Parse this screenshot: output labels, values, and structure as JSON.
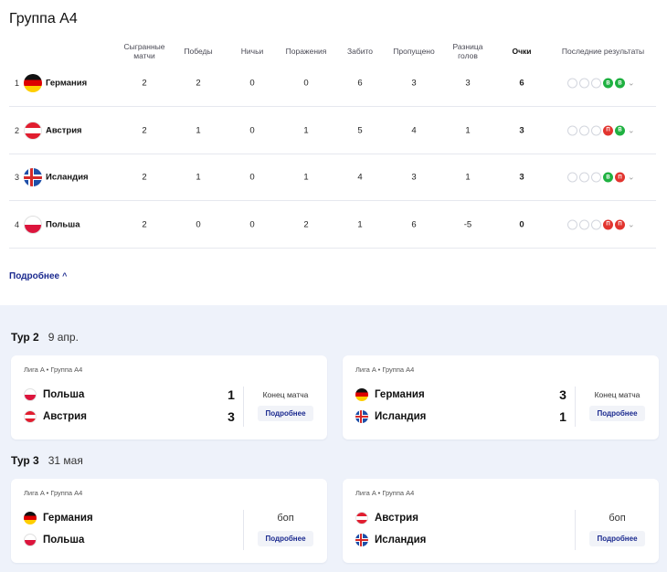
{
  "group": {
    "title": "Группа А4"
  },
  "table": {
    "headers": {
      "played": "Сыгранные матчи",
      "wins": "Победы",
      "draws": "Ничьи",
      "losses": "Поражения",
      "gf": "Забито",
      "ga": "Пропущено",
      "gd": "Разница голов",
      "points": "Очки",
      "form": "Последние результаты"
    },
    "rows": [
      {
        "pos": "1",
        "team": "Германия",
        "flag": "de",
        "played": "2",
        "wins": "2",
        "draws": "0",
        "losses": "0",
        "gf": "6",
        "ga": "3",
        "gd": "3",
        "points": "6",
        "form": [
          "",
          "",
          "",
          "В",
          "В"
        ]
      },
      {
        "pos": "2",
        "team": "Австрия",
        "flag": "at",
        "played": "2",
        "wins": "1",
        "draws": "0",
        "losses": "1",
        "gf": "5",
        "ga": "4",
        "gd": "1",
        "points": "3",
        "form": [
          "",
          "",
          "",
          "П",
          "В"
        ]
      },
      {
        "pos": "3",
        "team": "Исландия",
        "flag": "is",
        "played": "2",
        "wins": "1",
        "draws": "0",
        "losses": "1",
        "gf": "4",
        "ga": "3",
        "gd": "1",
        "points": "3",
        "form": [
          "",
          "",
          "",
          "В",
          "П"
        ]
      },
      {
        "pos": "4",
        "team": "Польша",
        "flag": "pl",
        "played": "2",
        "wins": "0",
        "draws": "0",
        "losses": "2",
        "gf": "1",
        "ga": "6",
        "gd": "-5",
        "points": "0",
        "form": [
          "",
          "",
          "",
          "П",
          "П"
        ]
      }
    ],
    "more_label": "Подробнее"
  },
  "colors": {
    "win": "#1fb141",
    "loss": "#e2352f",
    "link": "#1b2a8f",
    "panel": "#eef2fa"
  },
  "tours": [
    {
      "label": "Тур 2",
      "date": "9 апр.",
      "matches": [
        {
          "meta": "Лига A • Группа A4",
          "home": "Польша",
          "home_flag": "pl",
          "away": "Австрия",
          "away_flag": "at",
          "home_score": "1",
          "away_score": "3",
          "status": "Конец матча",
          "detail": "Подробнее"
        },
        {
          "meta": "Лига A • Группа A4",
          "home": "Германия",
          "home_flag": "de",
          "away": "Исландия",
          "away_flag": "is",
          "home_score": "3",
          "away_score": "1",
          "status": "Конец матча",
          "detail": "Подробнее"
        }
      ]
    },
    {
      "label": "Тур 3",
      "date": "31 мая",
      "matches": [
        {
          "meta": "Лига A • Группа A4",
          "home": "Германия",
          "home_flag": "de",
          "away": "Польша",
          "away_flag": "pl",
          "home_score": "",
          "away_score": "",
          "status": "боп",
          "detail": "Подробнее"
        },
        {
          "meta": "Лига A • Группа A4",
          "home": "Австрия",
          "home_flag": "at",
          "away": "Исландия",
          "away_flag": "is",
          "home_score": "",
          "away_score": "",
          "status": "боп",
          "detail": "Подробнее"
        }
      ]
    }
  ]
}
